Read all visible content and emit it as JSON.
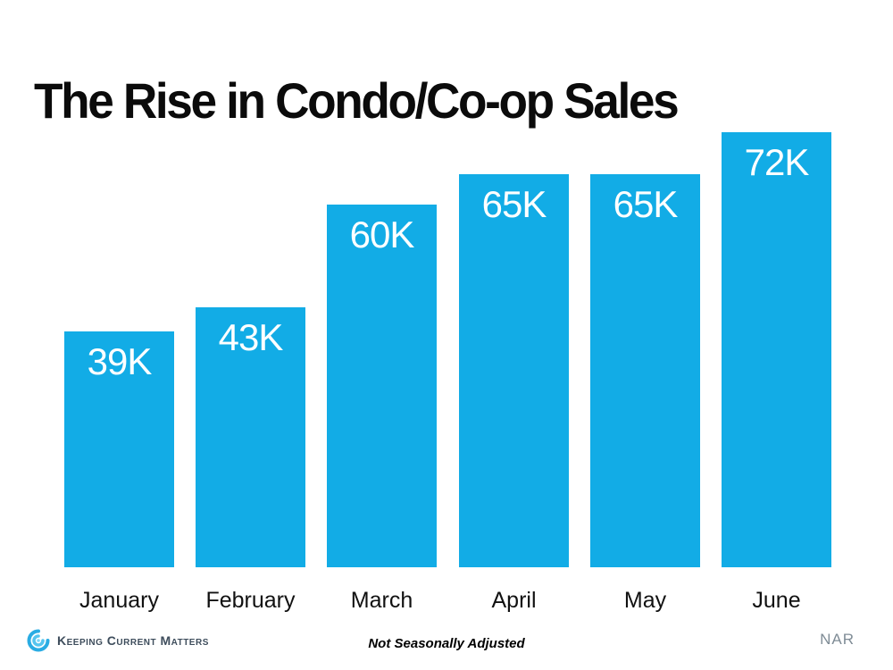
{
  "title": "The Rise in Condo/Co-op Sales",
  "footer": {
    "logo_text": "Keeping Current Matters",
    "note": "Not Seasonally Adjusted",
    "source": "NAR"
  },
  "colors": {
    "bar": "#12ace6",
    "bar_label_text": "#ffffff",
    "title_text": "#0b0b0b",
    "logo_blue": "#2aace3",
    "logo_text": "#3e4d5c",
    "source_text": "#7f8c96"
  },
  "chart_data": {
    "type": "bar",
    "title": "The Rise in Condo/Co-op Sales",
    "categories": [
      "January",
      "February",
      "March",
      "April",
      "May",
      "June"
    ],
    "values": [
      39,
      43,
      60,
      65,
      65,
      72
    ],
    "unit": "K",
    "data_labels": [
      "39K",
      "43K",
      "60K",
      "65K",
      "65K",
      "72K"
    ],
    "xlabel": "",
    "ylabel": "",
    "ylim": [
      0,
      73
    ],
    "grid": false,
    "legend": false,
    "annotation": "Not Seasonally Adjusted",
    "source": "NAR"
  }
}
